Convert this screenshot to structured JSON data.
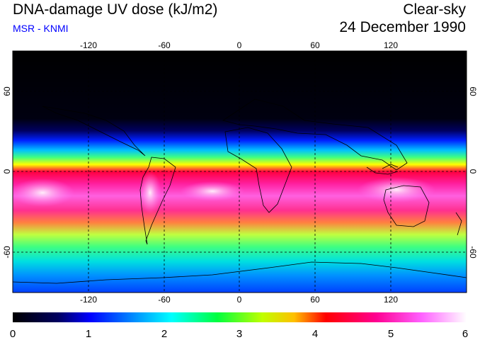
{
  "header": {
    "title": "DNA-damage UV dose (kJ/m2)",
    "source": "MSR - KNMI",
    "condition": "Clear-sky",
    "date": "24 December 1990"
  },
  "map": {
    "lon_ticks": [
      "-120",
      "-60",
      "0",
      "60",
      "120"
    ],
    "lat_ticks_left": [
      "60",
      "0",
      "-60"
    ],
    "lat_ticks_right": [
      "60",
      "0",
      "-60"
    ]
  },
  "colorbar": {
    "labels": [
      "0",
      "1",
      "2",
      "3",
      "4",
      "5",
      "6"
    ],
    "min": 0,
    "max": 6
  },
  "colors": {
    "scale": [
      "#000000",
      "#000080",
      "#0000ff",
      "#00ffff",
      "#00ff00",
      "#ffff00",
      "#ff0000",
      "#ff00ff",
      "#ffffff"
    ]
  }
}
